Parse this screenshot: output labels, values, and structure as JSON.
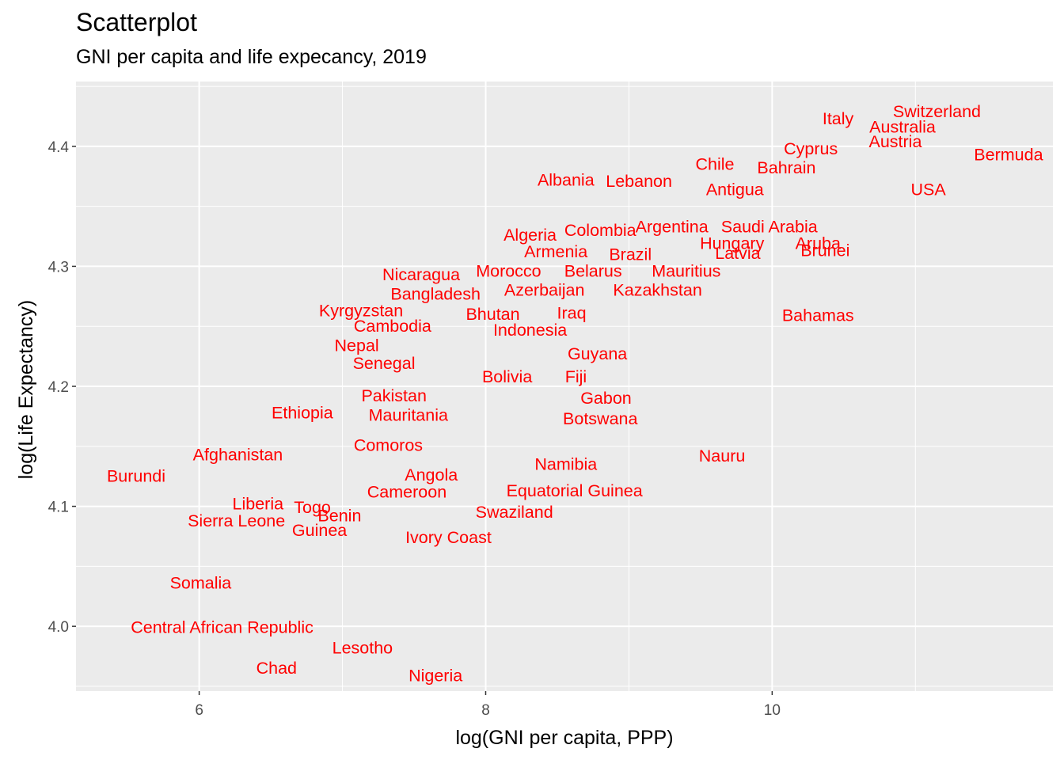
{
  "chart_data": {
    "type": "scatter",
    "title": "Scatterplot",
    "subtitle": "GNI per capita and life expecancy, 2019",
    "xlabel": "log(GNI per capita, PPP)",
    "ylabel": "log(Life Expectancy)",
    "xlim": [
      5.14,
      11.96
    ],
    "ylim": [
      3.946,
      4.454
    ],
    "x_ticks": [
      6,
      8,
      10
    ],
    "y_ticks": [
      4.0,
      4.1,
      4.2,
      4.3,
      4.4
    ],
    "x_tick_labels": [
      "6",
      "8",
      "10"
    ],
    "y_tick_labels": [
      "4.0",
      "4.1",
      "4.2",
      "4.3",
      "4.4"
    ],
    "grid": true,
    "label_color": "#ff0000",
    "panel_color": "#ebebeb",
    "points": [
      {
        "label": "Switzerland",
        "x": 11.15,
        "y": 4.429
      },
      {
        "label": "Italy",
        "x": 10.46,
        "y": 4.423
      },
      {
        "label": "Australia",
        "x": 10.91,
        "y": 4.416
      },
      {
        "label": "Austria",
        "x": 10.86,
        "y": 4.404
      },
      {
        "label": "Bermuda",
        "x": 11.65,
        "y": 4.393
      },
      {
        "label": "Cyprus",
        "x": 10.27,
        "y": 4.398
      },
      {
        "label": "Chile",
        "x": 9.6,
        "y": 4.385
      },
      {
        "label": "Bahrain",
        "x": 10.1,
        "y": 4.382
      },
      {
        "label": "Albania",
        "x": 8.56,
        "y": 4.372
      },
      {
        "label": "Lebanon",
        "x": 9.07,
        "y": 4.371
      },
      {
        "label": "USA",
        "x": 11.09,
        "y": 4.364
      },
      {
        "label": "Antigua",
        "x": 9.74,
        "y": 4.364
      },
      {
        "label": "Colombia",
        "x": 8.8,
        "y": 4.33
      },
      {
        "label": "Argentina",
        "x": 9.3,
        "y": 4.333
      },
      {
        "label": "Saudi Arabia",
        "x": 9.98,
        "y": 4.333
      },
      {
        "label": "Algeria",
        "x": 8.31,
        "y": 4.326
      },
      {
        "label": "Hungary",
        "x": 9.72,
        "y": 4.319
      },
      {
        "label": "Aruba",
        "x": 10.32,
        "y": 4.319
      },
      {
        "label": "Armenia",
        "x": 8.49,
        "y": 4.312
      },
      {
        "label": "Brazil",
        "x": 9.01,
        "y": 4.31
      },
      {
        "label": "Latvia",
        "x": 9.76,
        "y": 4.311
      },
      {
        "label": "Brunei",
        "x": 10.37,
        "y": 4.313
      },
      {
        "label": "Nicaragua",
        "x": 7.55,
        "y": 4.293
      },
      {
        "label": "Morocco",
        "x": 8.16,
        "y": 4.296
      },
      {
        "label": "Belarus",
        "x": 8.75,
        "y": 4.296
      },
      {
        "label": "Mauritius",
        "x": 9.4,
        "y": 4.296
      },
      {
        "label": "Bangladesh",
        "x": 7.65,
        "y": 4.277
      },
      {
        "label": "Azerbaijan",
        "x": 8.41,
        "y": 4.28
      },
      {
        "label": "Kazakhstan",
        "x": 9.2,
        "y": 4.28
      },
      {
        "label": "Kyrgyzstan",
        "x": 7.13,
        "y": 4.263
      },
      {
        "label": "Bhutan",
        "x": 8.05,
        "y": 4.26
      },
      {
        "label": "Iraq",
        "x": 8.6,
        "y": 4.261
      },
      {
        "label": "Bahamas",
        "x": 10.32,
        "y": 4.259
      },
      {
        "label": "Cambodia",
        "x": 7.35,
        "y": 4.25
      },
      {
        "label": "Indonesia",
        "x": 8.31,
        "y": 4.247
      },
      {
        "label": "Nepal",
        "x": 7.1,
        "y": 4.234
      },
      {
        "label": "Guyana",
        "x": 8.78,
        "y": 4.227
      },
      {
        "label": "Senegal",
        "x": 7.29,
        "y": 4.219
      },
      {
        "label": "Bolivia",
        "x": 8.15,
        "y": 4.208
      },
      {
        "label": "Fiji",
        "x": 8.63,
        "y": 4.208
      },
      {
        "label": "Pakistan",
        "x": 7.36,
        "y": 4.192
      },
      {
        "label": "Gabon",
        "x": 8.84,
        "y": 4.19
      },
      {
        "label": "Ethiopia",
        "x": 6.72,
        "y": 4.178
      },
      {
        "label": "Mauritania",
        "x": 7.46,
        "y": 4.176
      },
      {
        "label": "Botswana",
        "x": 8.8,
        "y": 4.173
      },
      {
        "label": "Comoros",
        "x": 7.32,
        "y": 4.151
      },
      {
        "label": "Afghanistan",
        "x": 6.27,
        "y": 4.143
      },
      {
        "label": "Nauru",
        "x": 9.65,
        "y": 4.142
      },
      {
        "label": "Namibia",
        "x": 8.56,
        "y": 4.135
      },
      {
        "label": "Burundi",
        "x": 5.56,
        "y": 4.125
      },
      {
        "label": "Angola",
        "x": 7.62,
        "y": 4.126
      },
      {
        "label": "Cameroon",
        "x": 7.45,
        "y": 4.112
      },
      {
        "label": "Equatorial Guinea",
        "x": 8.62,
        "y": 4.113
      },
      {
        "label": "Liberia",
        "x": 6.41,
        "y": 4.102
      },
      {
        "label": "Togo",
        "x": 6.79,
        "y": 4.099
      },
      {
        "label": "Swaziland",
        "x": 8.2,
        "y": 4.095
      },
      {
        "label": "Sierra Leone",
        "x": 6.26,
        "y": 4.088
      },
      {
        "label": "Benin",
        "x": 6.98,
        "y": 4.092
      },
      {
        "label": "Guinea",
        "x": 6.84,
        "y": 4.08
      },
      {
        "label": "Ivory Coast",
        "x": 7.74,
        "y": 4.074
      },
      {
        "label": "Somalia",
        "x": 6.01,
        "y": 4.036
      },
      {
        "label": "Central African Republic",
        "x": 6.16,
        "y": 3.999
      },
      {
        "label": "Lesotho",
        "x": 7.14,
        "y": 3.982
      },
      {
        "label": "Chad",
        "x": 6.54,
        "y": 3.965
      },
      {
        "label": "Nigeria",
        "x": 7.65,
        "y": 3.959
      }
    ]
  }
}
